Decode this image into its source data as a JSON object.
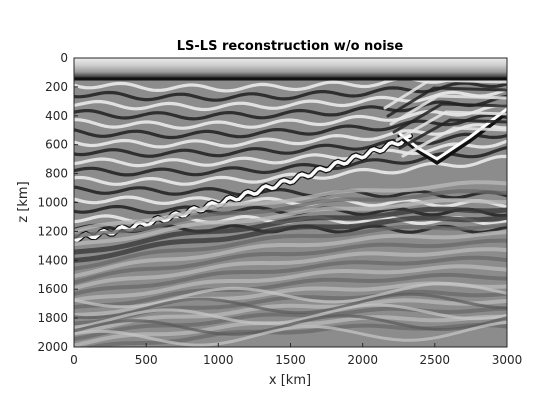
{
  "figure": {
    "title": "LS-LS reconstruction w/o noise",
    "xlabel": "x [km]",
    "ylabel": "z [km]"
  },
  "axes": {
    "xlim": [
      0,
      3000
    ],
    "ylim": [
      0,
      2000
    ],
    "y_reversed": true,
    "xticks": [
      "0",
      "500",
      "1000",
      "1500",
      "2000",
      "2500",
      "3000"
    ],
    "yticks": [
      "0",
      "200",
      "400",
      "600",
      "800",
      "1000",
      "1200",
      "1400",
      "1600",
      "1800",
      "2000"
    ],
    "colormap": "grayscale"
  }
}
